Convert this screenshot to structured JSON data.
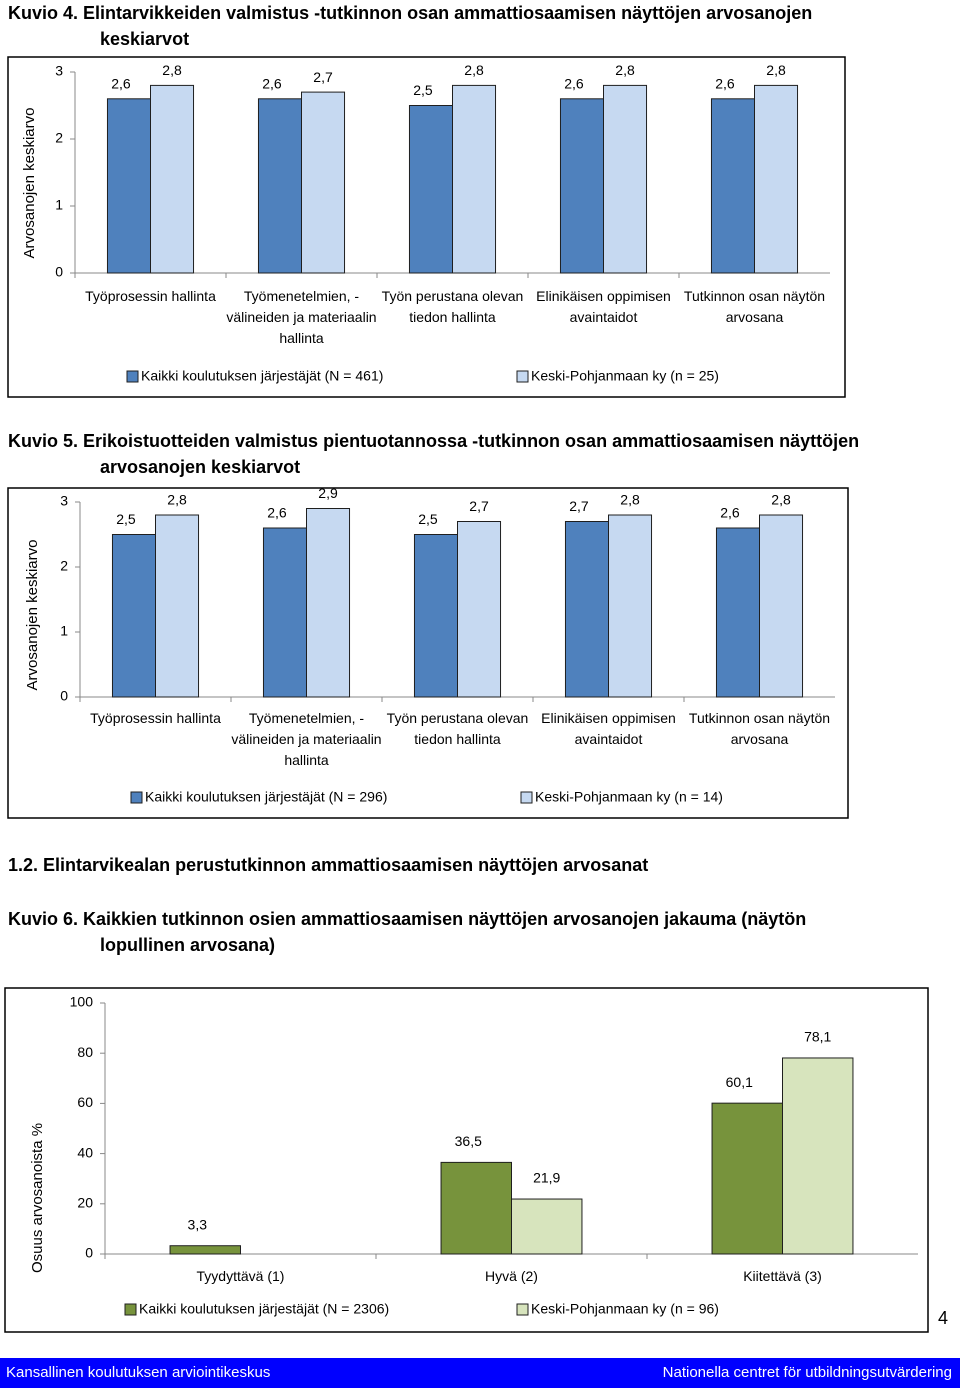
{
  "chart_data": [
    {
      "type": "bar",
      "title": "Kuvio 4. Elintarvikkeiden valmistus -tutkinnon osan ammattiosaamisen näyttöjen arvosanojen keskiarvot",
      "y_label": "Arvosanojen keskiarvo",
      "categories": [
        "Työprosessin hallinta",
        "Työmenetelmien, -välineiden ja materiaalin hallinta",
        "Työn perustana olevan tiedon hallinta",
        "Elinikäisen oppimisen avaintaidot",
        "Tutkinnon osan näytön arvosana"
      ],
      "series": [
        {
          "name": "Kaikki koulutuksen järjestäjät (N = 461)",
          "color": "#4f81bd",
          "values": [
            2.6,
            2.6,
            2.5,
            2.6,
            2.6
          ],
          "value_labels": [
            "2,6",
            "2,6",
            "2,5",
            "2,6",
            "2,6"
          ]
        },
        {
          "name": "Keski-Pohjanmaan ky (n = 25)",
          "color": "#c6d9f1",
          "values": [
            2.8,
            2.7,
            2.8,
            2.8,
            2.8
          ],
          "value_labels": [
            "2,8",
            "2,7",
            "2,8",
            "2,8",
            "2,8"
          ]
        }
      ],
      "ylim": [
        0,
        3
      ],
      "yticks": [
        0,
        1,
        2,
        3
      ],
      "grid": false,
      "legend": "bottom"
    },
    {
      "type": "bar",
      "title": "Kuvio 5. Erikoistuotteiden valmistus pientuotannossa -tutkinnon osan ammattiosaamisen näyttöjen arvosanojen keskiarvot",
      "y_label": "Arvosanojen keskiarvo",
      "categories": [
        "Työprosessin hallinta",
        "Työmenetelmien, -välineiden ja materiaalin hallinta",
        "Työn perustana olevan tiedon hallinta",
        "Elinikäisen oppimisen avaintaidot",
        "Tutkinnon osan näytön arvosana"
      ],
      "series": [
        {
          "name": "Kaikki koulutuksen järjestäjät (N = 296)",
          "color": "#4f81bd",
          "values": [
            2.5,
            2.6,
            2.5,
            2.7,
            2.6
          ],
          "value_labels": [
            "2,5",
            "2,6",
            "2,5",
            "2,7",
            "2,6"
          ]
        },
        {
          "name": "Keski-Pohjanmaan ky (n = 14)",
          "color": "#c6d9f1",
          "values": [
            2.8,
            2.9,
            2.7,
            2.8,
            2.8
          ],
          "value_labels": [
            "2,8",
            "2,9",
            "2,7",
            "2,8",
            "2,8"
          ]
        }
      ],
      "ylim": [
        0,
        3
      ],
      "yticks": [
        0,
        1,
        2,
        3
      ],
      "grid": false,
      "legend": "bottom"
    },
    {
      "type": "bar",
      "title": "Kuvio 6. Kaikkien tutkinnon osien ammattiosaamisen näyttöjen arvosanojen jakauma (näytön lopullinen arvosana)",
      "y_label": "Osuus arvosanoista %",
      "categories": [
        "Tyydyttävä (1)",
        "Hyvä (2)",
        "Kiitettävä (3)"
      ],
      "series": [
        {
          "name": "Kaikki koulutuksen järjestäjät (N = 2306)",
          "color": "#77933c",
          "values": [
            3.3,
            36.5,
            60.1
          ],
          "value_labels": [
            "3,3",
            "36,5",
            "60,1"
          ]
        },
        {
          "name": "Keski-Pohjanmaan ky (n = 96)",
          "color": "#d7e4bd",
          "values": [
            null,
            21.9,
            78.1
          ],
          "value_labels": [
            null,
            "21,9",
            "78,1"
          ]
        }
      ],
      "ylim": [
        0,
        100
      ],
      "yticks": [
        0,
        20,
        40,
        60,
        80,
        100
      ],
      "grid": false,
      "legend": "bottom"
    }
  ],
  "section": {
    "heading": "1.2. Elintarvikealan perustutkinnon ammattiosaamisen näyttöjen arvosanat"
  },
  "page_number": 4,
  "footer": {
    "left": "Kansallinen koulutuksen arviointikeskus",
    "right": "Nationella centret för utbildningsutvärdering"
  }
}
